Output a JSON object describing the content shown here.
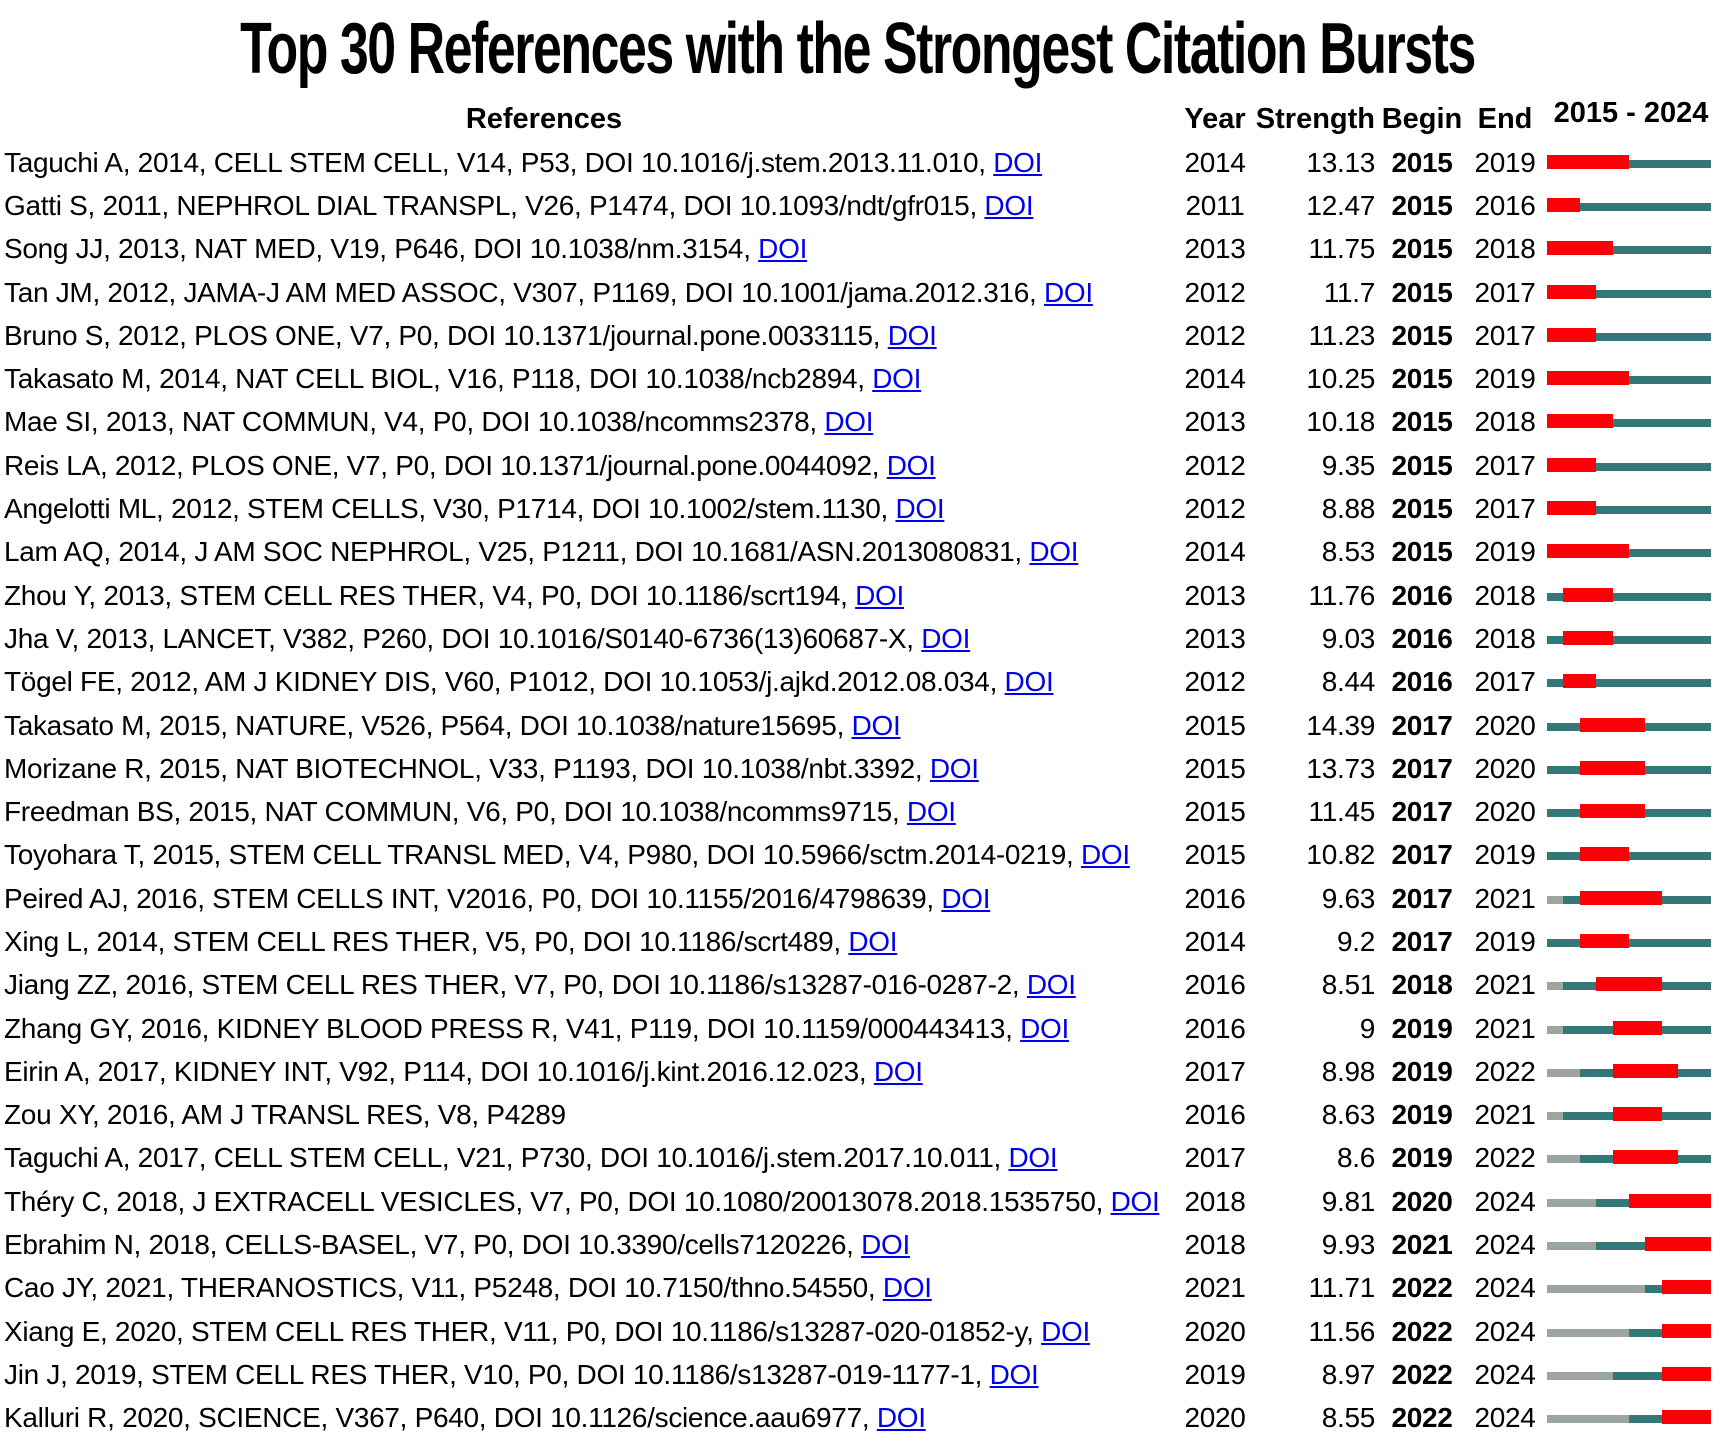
{
  "title": "Top 30 References with the Strongest Citation Bursts",
  "header": {
    "references": "References",
    "year": "Year",
    "strength": "Strength",
    "begin": "Begin",
    "end": "End",
    "range": "2015 - 2024"
  },
  "doi_label": "DOI",
  "colors": {
    "burst_bar": "#FB0006",
    "active_line": "#337776",
    "pre_publication_line": "#9CA5A2",
    "link": "#0000EE",
    "text": "#000000",
    "background": "#FFFFFF"
  },
  "chart_data": {
    "type": "table",
    "title": "Top 30 References with the Strongest Citation Bursts",
    "columns": [
      "References",
      "Year",
      "Strength",
      "Begin",
      "End",
      "2015 - 2024"
    ],
    "timeline": {
      "start": 2015,
      "end": 2024
    },
    "bar_encoding": {
      "burst": "red thick segment from Begin year through End year",
      "active": "dark teal thin line from publication year to 2024 outside the burst",
      "pre": "light gray thin line for years before publication year"
    },
    "rows": [
      {
        "reference": "Taguchi A, 2014, CELL STEM CELL, V14, P53, DOI 10.1016/j.stem.2013.11.010,",
        "doi_link": true,
        "year": 2014,
        "strength": "13.13",
        "begin": 2015,
        "end": 2019
      },
      {
        "reference": "Gatti S, 2011, NEPHROL DIAL TRANSPL, V26, P1474, DOI 10.1093/ndt/gfr015,",
        "doi_link": true,
        "year": 2011,
        "strength": "12.47",
        "begin": 2015,
        "end": 2016
      },
      {
        "reference": "Song JJ, 2013, NAT MED, V19, P646, DOI 10.1038/nm.3154,",
        "doi_link": true,
        "year": 2013,
        "strength": "11.75",
        "begin": 2015,
        "end": 2018
      },
      {
        "reference": "Tan JM, 2012, JAMA-J AM MED ASSOC, V307, P1169, DOI 10.1001/jama.2012.316,",
        "doi_link": true,
        "year": 2012,
        "strength": "11.7",
        "begin": 2015,
        "end": 2017
      },
      {
        "reference": "Bruno S, 2012, PLOS ONE, V7, P0, DOI 10.1371/journal.pone.0033115,",
        "doi_link": true,
        "year": 2012,
        "strength": "11.23",
        "begin": 2015,
        "end": 2017
      },
      {
        "reference": "Takasato M, 2014, NAT CELL BIOL, V16, P118, DOI 10.1038/ncb2894,",
        "doi_link": true,
        "year": 2014,
        "strength": "10.25",
        "begin": 2015,
        "end": 2019
      },
      {
        "reference": "Mae SI, 2013, NAT COMMUN, V4, P0, DOI 10.1038/ncomms2378,",
        "doi_link": true,
        "year": 2013,
        "strength": "10.18",
        "begin": 2015,
        "end": 2018
      },
      {
        "reference": "Reis LA, 2012, PLOS ONE, V7, P0, DOI 10.1371/journal.pone.0044092,",
        "doi_link": true,
        "year": 2012,
        "strength": "9.35",
        "begin": 2015,
        "end": 2017
      },
      {
        "reference": "Angelotti ML, 2012, STEM CELLS, V30, P1714, DOI 10.1002/stem.1130,",
        "doi_link": true,
        "year": 2012,
        "strength": "8.88",
        "begin": 2015,
        "end": 2017
      },
      {
        "reference": "Lam AQ, 2014, J AM SOC NEPHROL, V25, P1211, DOI 10.1681/ASN.2013080831,",
        "doi_link": true,
        "year": 2014,
        "strength": "8.53",
        "begin": 2015,
        "end": 2019
      },
      {
        "reference": "Zhou Y, 2013, STEM CELL RES THER, V4, P0, DOI 10.1186/scrt194,",
        "doi_link": true,
        "year": 2013,
        "strength": "11.76",
        "begin": 2016,
        "end": 2018
      },
      {
        "reference": "Jha V, 2013, LANCET, V382, P260, DOI 10.1016/S0140-6736(13)60687-X,",
        "doi_link": true,
        "year": 2013,
        "strength": "9.03",
        "begin": 2016,
        "end": 2018
      },
      {
        "reference": "Tögel FE, 2012, AM J KIDNEY DIS, V60, P1012, DOI 10.1053/j.ajkd.2012.08.034,",
        "doi_link": true,
        "year": 2012,
        "strength": "8.44",
        "begin": 2016,
        "end": 2017
      },
      {
        "reference": "Takasato M, 2015, NATURE, V526, P564, DOI 10.1038/nature15695,",
        "doi_link": true,
        "year": 2015,
        "strength": "14.39",
        "begin": 2017,
        "end": 2020
      },
      {
        "reference": "Morizane R, 2015, NAT BIOTECHNOL, V33, P1193, DOI 10.1038/nbt.3392,",
        "doi_link": true,
        "year": 2015,
        "strength": "13.73",
        "begin": 2017,
        "end": 2020
      },
      {
        "reference": "Freedman BS, 2015, NAT COMMUN, V6, P0, DOI 10.1038/ncomms9715,",
        "doi_link": true,
        "year": 2015,
        "strength": "11.45",
        "begin": 2017,
        "end": 2020
      },
      {
        "reference": "Toyohara T, 2015, STEM CELL TRANSL MED, V4, P980, DOI 10.5966/sctm.2014-0219,",
        "doi_link": true,
        "year": 2015,
        "strength": "10.82",
        "begin": 2017,
        "end": 2019
      },
      {
        "reference": "Peired AJ, 2016, STEM CELLS INT, V2016, P0, DOI 10.1155/2016/4798639,",
        "doi_link": true,
        "year": 2016,
        "strength": "9.63",
        "begin": 2017,
        "end": 2021
      },
      {
        "reference": "Xing L, 2014, STEM CELL RES THER, V5, P0, DOI 10.1186/scrt489,",
        "doi_link": true,
        "year": 2014,
        "strength": "9.2",
        "begin": 2017,
        "end": 2019
      },
      {
        "reference": "Jiang ZZ, 2016, STEM CELL RES THER, V7, P0, DOI 10.1186/s13287-016-0287-2,",
        "doi_link": true,
        "year": 2016,
        "strength": "8.51",
        "begin": 2018,
        "end": 2021
      },
      {
        "reference": "Zhang GY, 2016, KIDNEY BLOOD PRESS R, V41, P119, DOI 10.1159/000443413,",
        "doi_link": true,
        "year": 2016,
        "strength": "9",
        "begin": 2019,
        "end": 2021
      },
      {
        "reference": "Eirin A, 2017, KIDNEY INT, V92, P114, DOI 10.1016/j.kint.2016.12.023,",
        "doi_link": true,
        "year": 2017,
        "strength": "8.98",
        "begin": 2019,
        "end": 2022
      },
      {
        "reference": "Zou XY, 2016, AM J TRANSL RES, V8, P4289",
        "doi_link": false,
        "year": 2016,
        "strength": "8.63",
        "begin": 2019,
        "end": 2021
      },
      {
        "reference": "Taguchi A, 2017, CELL STEM CELL, V21, P730, DOI 10.1016/j.stem.2017.10.011,",
        "doi_link": true,
        "year": 2017,
        "strength": "8.6",
        "begin": 2019,
        "end": 2022
      },
      {
        "reference": "Théry C, 2018, J EXTRACELL VESICLES, V7, P0, DOI 10.1080/20013078.2018.1535750,",
        "doi_link": true,
        "year": 2018,
        "strength": "9.81",
        "begin": 2020,
        "end": 2024
      },
      {
        "reference": "Ebrahim N, 2018, CELLS-BASEL, V7, P0, DOI 10.3390/cells7120226,",
        "doi_link": true,
        "year": 2018,
        "strength": "9.93",
        "begin": 2021,
        "end": 2024
      },
      {
        "reference": "Cao JY, 2021, THERANOSTICS, V11, P5248, DOI 10.7150/thno.54550,",
        "doi_link": true,
        "year": 2021,
        "strength": "11.71",
        "begin": 2022,
        "end": 2024
      },
      {
        "reference": "Xiang E, 2020, STEM CELL RES THER, V11, P0, DOI 10.1186/s13287-020-01852-y,",
        "doi_link": true,
        "year": 2020,
        "strength": "11.56",
        "begin": 2022,
        "end": 2024
      },
      {
        "reference": "Jin J, 2019, STEM CELL RES THER, V10, P0, DOI 10.1186/s13287-019-1177-1,",
        "doi_link": true,
        "year": 2019,
        "strength": "8.97",
        "begin": 2022,
        "end": 2024
      },
      {
        "reference": "Kalluri R, 2020, SCIENCE, V367, P640, DOI 10.1126/science.aau6977,",
        "doi_link": true,
        "year": 2020,
        "strength": "8.55",
        "begin": 2022,
        "end": 2024
      }
    ]
  }
}
